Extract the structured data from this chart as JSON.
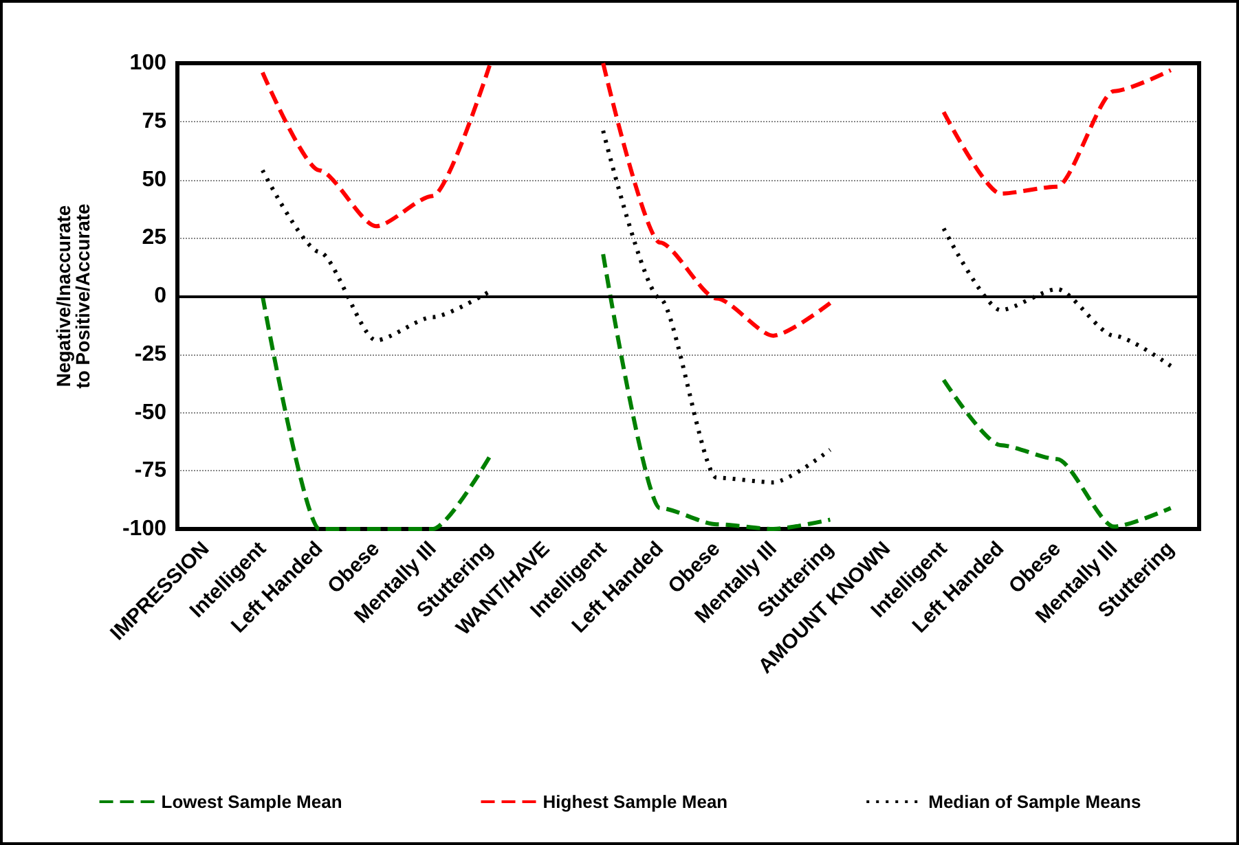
{
  "chart_data": {
    "type": "line",
    "ylabel": "Negative/Inaccurate to Positive/Accurate",
    "categories": [
      "IMPRESSION",
      "Intelligent",
      "Left Handed",
      "Obese",
      "Mentally Ill",
      "Stuttering",
      "WANT/HAVE",
      "Intelligent",
      "Left Handed",
      "Obese",
      "Mentally Ill",
      "Stuttering",
      "AMOUNT KNOWN",
      "Intelligent",
      "Left Handed",
      "Obese",
      "Mentally Ill",
      "Stuttering"
    ],
    "series": [
      {
        "name": "Lowest Sample Mean",
        "color": "#008000",
        "line_style": "dashed",
        "values": [
          null,
          0,
          -100,
          -100,
          -100,
          -69,
          null,
          18,
          -91,
          -98,
          -100,
          -96,
          null,
          -36,
          -64,
          -70,
          -99,
          -91
        ]
      },
      {
        "name": "Highest Sample Mean",
        "color": "#ff0000",
        "line_style": "dashed",
        "values": [
          null,
          96,
          54,
          30,
          43,
          99,
          null,
          100,
          23,
          -1,
          -17,
          -3,
          null,
          79,
          44,
          47,
          88,
          97
        ]
      },
      {
        "name": "Median of Sample Means",
        "color": "#000000",
        "line_style": "dotted",
        "values": [
          null,
          54,
          19,
          -19,
          -9,
          2,
          null,
          71,
          -1,
          -78,
          -80,
          -66,
          null,
          29,
          -6,
          3,
          -17,
          -30
        ]
      }
    ],
    "ylim": [
      -100,
      100
    ],
    "yticks": [
      -100,
      -75,
      -50,
      -25,
      0,
      25,
      50,
      75,
      100
    ],
    "grid": "y",
    "legend": "bottom",
    "marker": "none"
  }
}
